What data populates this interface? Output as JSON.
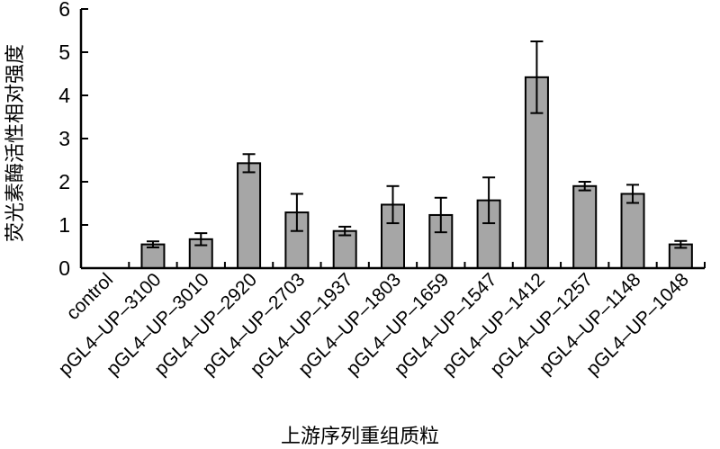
{
  "chart_data": {
    "type": "bar",
    "title": "",
    "xlabel": "上游序列重组质粒",
    "ylabel": "荧光素酶活性相对强度",
    "ylim": [
      0,
      6
    ],
    "yticks": [
      0,
      1,
      2,
      3,
      4,
      5,
      6
    ],
    "categories": [
      "control",
      "pGL4–UP–3100",
      "pGL4–UP–3010",
      "pGL4–UP–2920",
      "pGL4–UP–2703",
      "pGL4–UP–1937",
      "pGL4–UP–1803",
      "pGL4–UP–1659",
      "pGL4–UP–1547",
      "pGL4–UP–1412",
      "pGL4–UP–1257",
      "pGL4–UP–1148",
      "pGL4–UP–1048"
    ],
    "values": [
      0,
      0.55,
      0.67,
      2.43,
      1.29,
      0.86,
      1.47,
      1.23,
      1.57,
      4.42,
      1.9,
      1.72,
      0.55
    ],
    "errors": [
      0,
      0.07,
      0.14,
      0.21,
      0.43,
      0.1,
      0.43,
      0.4,
      0.53,
      0.83,
      0.1,
      0.21,
      0.08
    ],
    "grid": false,
    "legend": "none"
  }
}
